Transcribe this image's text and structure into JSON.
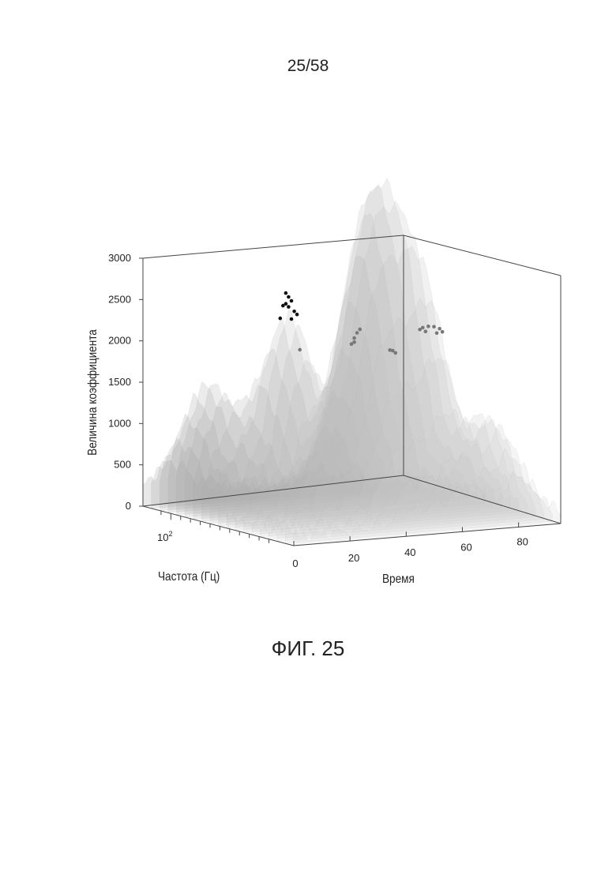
{
  "page": {
    "number": "25/58",
    "figure_caption": "ФИГ. 25"
  },
  "chart_data": {
    "type": "surface3d",
    "title": "",
    "zlabel": "Величина коэффициента",
    "xlabel": "Время",
    "ylabel": "Частота (Гц)",
    "zlim": [
      0,
      3000
    ],
    "xlim": [
      0,
      95
    ],
    "z_ticks": [
      "0",
      "500",
      "1000",
      "1500",
      "2000",
      "2500",
      "3000"
    ],
    "x_ticks": [
      "0",
      "20",
      "40",
      "60",
      "80"
    ],
    "y_tick_base": "10",
    "y_tick_exp": "2",
    "grid": false,
    "surface_peaks": [
      {
        "time": 25,
        "freq_pos": 0.5,
        "magnitude": 2300
      },
      {
        "time": 43,
        "freq_pos": 0.35,
        "magnitude": 2250
      },
      {
        "time": 52,
        "freq_pos": 0.4,
        "magnitude": 2100
      },
      {
        "time": 62,
        "freq_pos": 0.3,
        "magnitude": 2350
      },
      {
        "time": 10,
        "freq_pos": 0.75,
        "magnitude": 1400
      },
      {
        "time": 55,
        "freq_pos": 0.6,
        "magnitude": 1300
      },
      {
        "time": 80,
        "freq_pos": 0.2,
        "magnitude": 1100
      }
    ],
    "marked_points": [
      {
        "group": "black",
        "color": "#111111",
        "points": [
          [
            24,
            0.5,
            2750
          ],
          [
            25,
            0.5,
            2700
          ],
          [
            26,
            0.5,
            2650
          ],
          [
            23,
            0.5,
            2600
          ],
          [
            25,
            0.5,
            2580
          ],
          [
            27,
            0.5,
            2520
          ],
          [
            28,
            0.5,
            2480
          ],
          [
            22,
            0.5,
            2450
          ],
          [
            26,
            0.5,
            2430
          ],
          [
            24,
            0.5,
            2620
          ]
        ]
      },
      {
        "group": "gray",
        "color": "#777777",
        "points": [
          [
            29,
            0.5,
            2050
          ],
          [
            43,
            0.4,
            2200
          ],
          [
            44,
            0.4,
            2260
          ],
          [
            45,
            0.4,
            2300
          ],
          [
            43,
            0.4,
            2150
          ],
          [
            42,
            0.4,
            2130
          ],
          [
            53,
            0.35,
            2050
          ],
          [
            54,
            0.35,
            2040
          ],
          [
            55,
            0.35,
            2010
          ],
          [
            61,
            0.3,
            2300
          ],
          [
            62,
            0.3,
            2320
          ],
          [
            64,
            0.3,
            2330
          ],
          [
            66,
            0.3,
            2320
          ],
          [
            68,
            0.3,
            2290
          ],
          [
            69,
            0.3,
            2250
          ],
          [
            63,
            0.3,
            2270
          ],
          [
            67,
            0.3,
            2240
          ]
        ]
      }
    ]
  }
}
